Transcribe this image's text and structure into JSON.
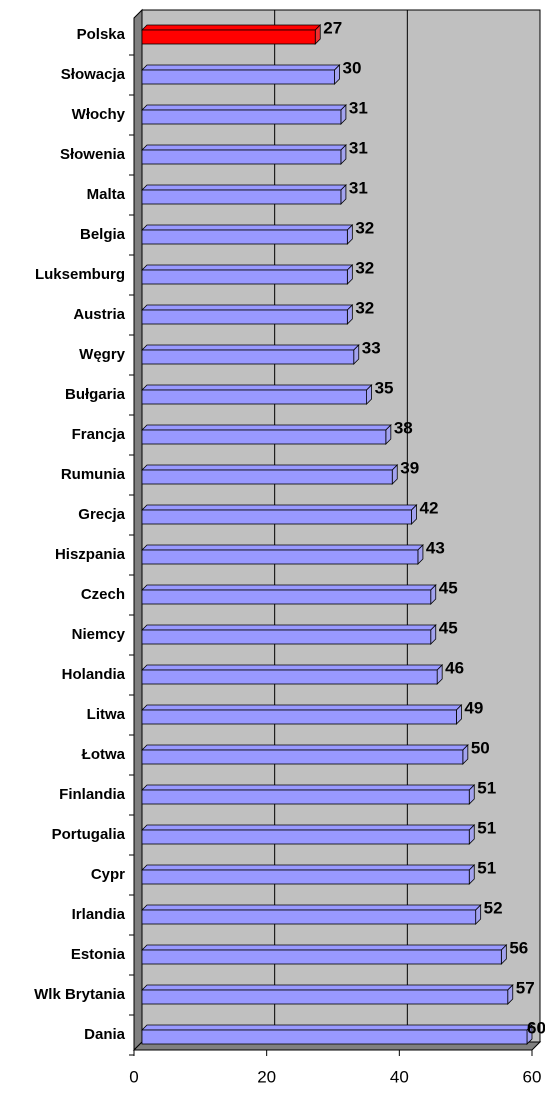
{
  "chart_data": {
    "type": "bar",
    "orientation": "horizontal",
    "categories": [
      "Polska",
      "Słowacja",
      "Włochy",
      "Słowenia",
      "Malta",
      "Belgia",
      "Luksemburg",
      "Austria",
      "Węgry",
      "Bułgaria",
      "Francja",
      "Rumunia",
      "Grecja",
      "Hiszpania",
      "Czech",
      "Niemcy",
      "Holandia",
      "Litwa",
      "Łotwa",
      "Finlandia",
      "Portugalia",
      "Cypr",
      "Irlandia",
      "Estonia",
      "Wlk Brytania",
      "Dania"
    ],
    "values": [
      27,
      30,
      31,
      31,
      31,
      32,
      32,
      32,
      33,
      35,
      38,
      39,
      42,
      43,
      45,
      45,
      46,
      49,
      50,
      51,
      51,
      51,
      52,
      56,
      57,
      60
    ],
    "colors": [
      "#ff0000",
      "#9999ff",
      "#9999ff",
      "#9999ff",
      "#9999ff",
      "#9999ff",
      "#9999ff",
      "#9999ff",
      "#9999ff",
      "#9999ff",
      "#9999ff",
      "#9999ff",
      "#9999ff",
      "#9999ff",
      "#9999ff",
      "#9999ff",
      "#9999ff",
      "#9999ff",
      "#9999ff",
      "#9999ff",
      "#9999ff",
      "#9999ff",
      "#9999ff",
      "#9999ff",
      "#9999ff",
      "#9999ff"
    ],
    "xlim": [
      0,
      60
    ],
    "xticks": [
      0,
      20,
      40,
      60
    ],
    "grid": true
  }
}
